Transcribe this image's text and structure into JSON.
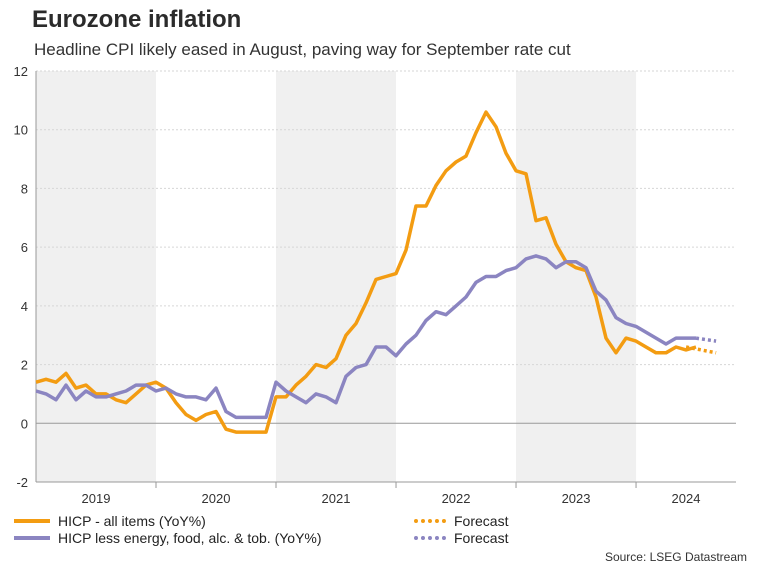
{
  "chart_data": {
    "type": "line",
    "title": "Eurozone inflation",
    "subtitle": "Headline CPI likely eased in August, paving way for September rate cut",
    "source": "Source: LSEG Datastream",
    "ylim": [
      -2,
      12
    ],
    "yticks": [
      -2,
      0,
      2,
      4,
      6,
      8,
      10,
      12
    ],
    "xlim": [
      2019.0,
      2024.833
    ],
    "years": [
      "2019",
      "2020",
      "2021",
      "2022",
      "2023",
      "2024"
    ],
    "shaded_years": [
      2019,
      2021,
      2023
    ],
    "grid": true,
    "legend_position": "bottom",
    "colors": {
      "headline": "#f39c12",
      "core": "#8b85c1",
      "shade": "#f0f0f0",
      "zero": "#999999"
    },
    "series": [
      {
        "name": "HICP - all items (YoY%)",
        "start": "2019-01",
        "values": [
          1.4,
          1.5,
          1.4,
          1.7,
          1.2,
          1.3,
          1.0,
          1.0,
          0.8,
          0.7,
          1.0,
          1.3,
          1.4,
          1.2,
          0.7,
          0.3,
          0.1,
          0.3,
          0.4,
          -0.2,
          -0.3,
          -0.3,
          -0.3,
          -0.3,
          0.9,
          0.9,
          1.3,
          1.6,
          2.0,
          1.9,
          2.2,
          3.0,
          3.4,
          4.1,
          4.9,
          5.0,
          5.1,
          5.9,
          7.4,
          7.4,
          8.1,
          8.6,
          8.9,
          9.1,
          9.9,
          10.6,
          10.1,
          9.2,
          8.6,
          8.5,
          6.9,
          7.0,
          6.1,
          5.5,
          5.3,
          5.2,
          4.3,
          2.9,
          2.4,
          2.9,
          2.8,
          2.6,
          2.4,
          2.4,
          2.6,
          2.5,
          2.6
        ]
      },
      {
        "name": "HICP less energy, food, alc. & tob. (YoY%)",
        "start": "2019-01",
        "values": [
          1.1,
          1.0,
          0.8,
          1.3,
          0.8,
          1.1,
          0.9,
          0.9,
          1.0,
          1.1,
          1.3,
          1.3,
          1.1,
          1.2,
          1.0,
          0.9,
          0.9,
          0.8,
          1.2,
          0.4,
          0.2,
          0.2,
          0.2,
          0.2,
          1.4,
          1.1,
          0.9,
          0.7,
          1.0,
          0.9,
          0.7,
          1.6,
          1.9,
          2.0,
          2.6,
          2.6,
          2.3,
          2.7,
          3.0,
          3.5,
          3.8,
          3.7,
          4.0,
          4.3,
          4.8,
          5.0,
          5.0,
          5.2,
          5.3,
          5.6,
          5.7,
          5.6,
          5.3,
          5.5,
          5.5,
          5.3,
          4.5,
          4.2,
          3.6,
          3.4,
          3.3,
          3.1,
          2.9,
          2.7,
          2.9,
          2.9,
          2.9
        ]
      }
    ],
    "forecast": [
      {
        "name": "Forecast",
        "from": [
          2024.417,
          2.6
        ],
        "to": [
          2024.667,
          2.4
        ],
        "series": 0
      },
      {
        "name": "Forecast",
        "from": [
          2024.5,
          2.9
        ],
        "to": [
          2024.667,
          2.8
        ],
        "series": 1
      }
    ]
  }
}
